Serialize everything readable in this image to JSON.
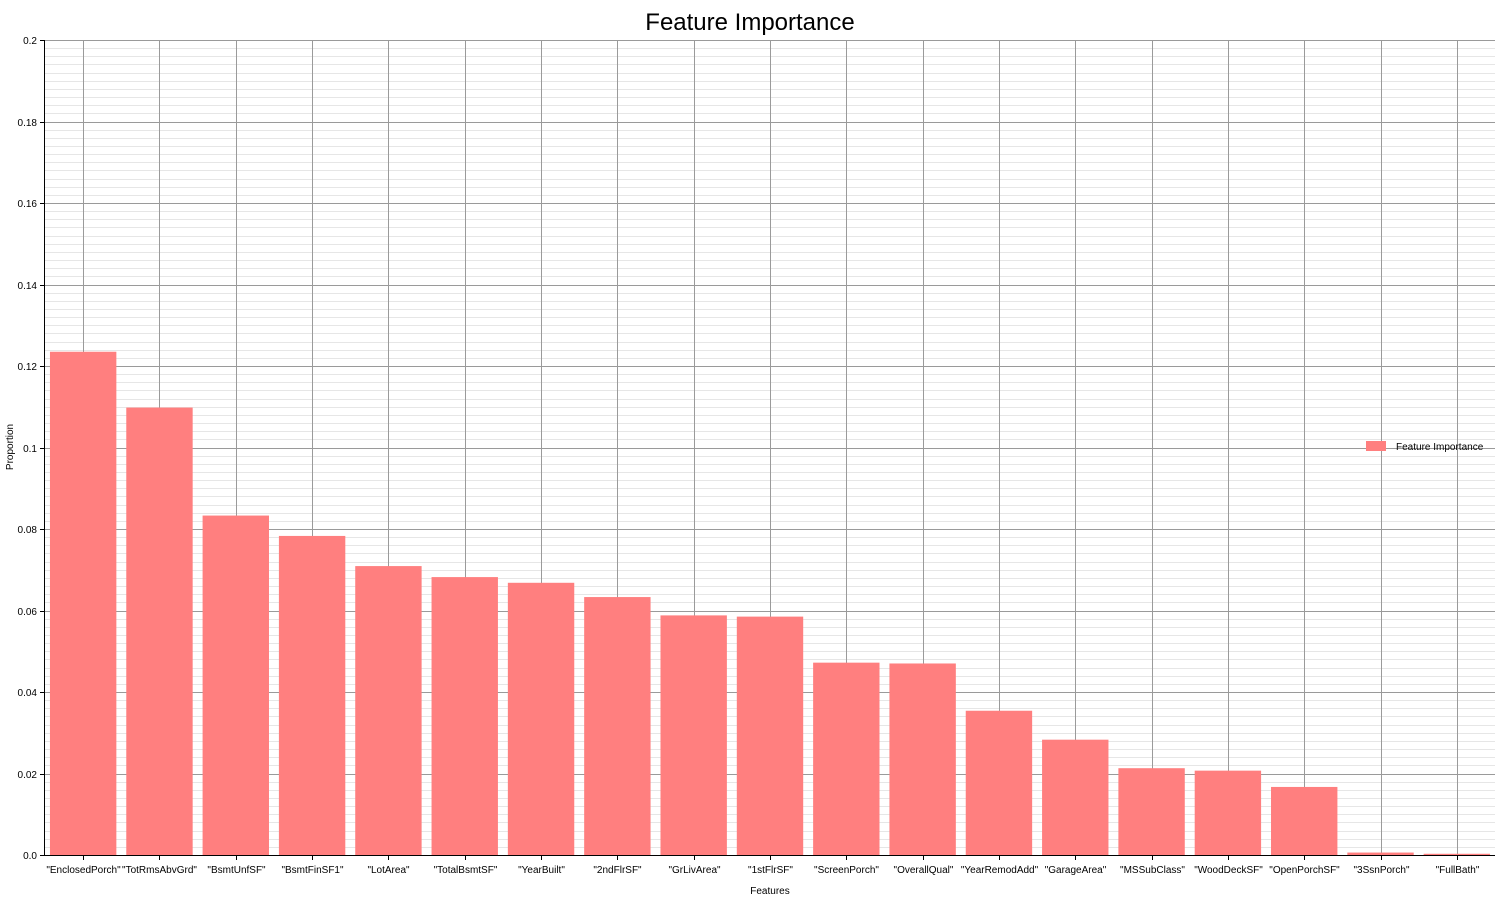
{
  "chart_data": {
    "type": "bar",
    "title": "Feature Importance",
    "xlabel": "Features",
    "ylabel": "Proportion",
    "ylim": [
      0,
      0.2
    ],
    "yticks": [
      {
        "value": 0,
        "label": "0.0"
      },
      {
        "value": 0.02,
        "label": "0.02"
      },
      {
        "value": 0.04,
        "label": "0.04"
      },
      {
        "value": 0.06,
        "label": "0.06"
      },
      {
        "value": 0.08,
        "label": "0.08"
      },
      {
        "value": 0.1,
        "label": "0.1"
      },
      {
        "value": 0.12,
        "label": "0.12"
      },
      {
        "value": 0.14,
        "label": "0.14"
      },
      {
        "value": 0.16,
        "label": "0.16"
      },
      {
        "value": 0.18,
        "label": "0.18"
      },
      {
        "value": 0.2,
        "label": "0.2"
      }
    ],
    "grid": true,
    "legend_position": "right",
    "categories": [
      "\"EnclosedPorch\"",
      "\"TotRmsAbvGrd\"",
      "\"BsmtUnfSF\"",
      "\"BsmtFinSF1\"",
      "\"LotArea\"",
      "\"TotalBsmtSF\"",
      "\"YearBuilt\"",
      "\"2ndFlrSF\"",
      "\"GrLivArea\"",
      "\"1stFlrSF\"",
      "\"ScreenPorch\"",
      "\"OverallQual\"",
      "\"YearRemodAdd\"",
      "\"GarageArea\"",
      "\"MSSubClass\"",
      "\"WoodDeckSF\"",
      "\"OpenPorchSF\"",
      "\"3SsnPorch\"",
      "\"FullBath\""
    ],
    "series": [
      {
        "name": "Feature Importance",
        "color": "#ff7f7f",
        "values": [
          0.1235,
          0.1098,
          0.0833,
          0.0783,
          0.0709,
          0.0682,
          0.0668,
          0.0633,
          0.0588,
          0.0585,
          0.0472,
          0.047,
          0.0354,
          0.0283,
          0.0213,
          0.0207,
          0.0167,
          0.0006,
          0.0003
        ]
      }
    ]
  }
}
